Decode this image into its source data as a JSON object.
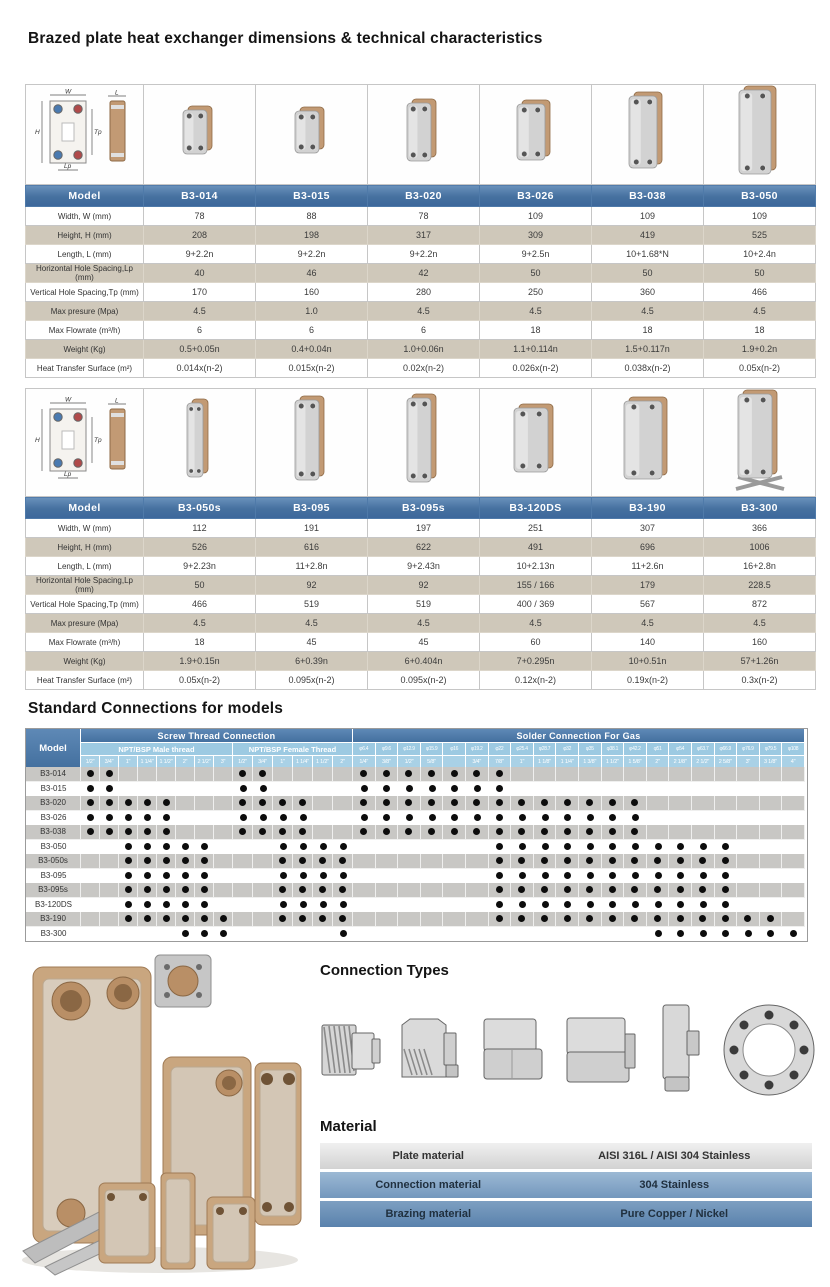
{
  "sections": {
    "dimensions_title": "Brazed plate heat exchanger dimensions & technical characteristics",
    "connections_title": "Standard Connections for models",
    "connection_types_title": "Connection Types",
    "material_title": "Material"
  },
  "diagram_labels": {
    "w": "W",
    "h": "H",
    "l": "L",
    "tp": "Tp",
    "lp": "Lp"
  },
  "dim_tables": [
    {
      "model_header": "Model",
      "models": [
        "B3-014",
        "B3-015",
        "B3-020",
        "B3-026",
        "B3-038",
        "B3-050"
      ],
      "rows": [
        {
          "label": "Width, W (mm)",
          "values": [
            "78",
            "88",
            "78",
            "109",
            "109",
            "109"
          ]
        },
        {
          "label": "Height, H (mm)",
          "values": [
            "208",
            "198",
            "317",
            "309",
            "419",
            "525"
          ]
        },
        {
          "label": "Length, L (mm)",
          "values": [
            "9+2.2n",
            "9+2.2n",
            "9+2.2n",
            "9+2.5n",
            "10+1.68*N",
            "10+2.4n"
          ]
        },
        {
          "label": "Horizontal Hole Spacing,Lp (mm)",
          "values": [
            "40",
            "46",
            "42",
            "50",
            "50",
            "50"
          ]
        },
        {
          "label": "Vertical Hole Spacing,Tp (mm)",
          "values": [
            "170",
            "160",
            "280",
            "250",
            "360",
            "466"
          ]
        },
        {
          "label": "Max presure (Mpa)",
          "values": [
            "4.5",
            "1.0",
            "4.5",
            "4.5",
            "4.5",
            "4.5"
          ]
        },
        {
          "label": "Max Flowrate (m³/h)",
          "values": [
            "6",
            "6",
            "6",
            "18",
            "18",
            "18"
          ]
        },
        {
          "label": "Weight (Kg)",
          "values": [
            "0.5+0.05n",
            "0.4+0.04n",
            "1.0+0.06n",
            "1.1+0.114n",
            "1.5+0.117n",
            "1.9+0.2n"
          ]
        },
        {
          "label": "Heat Transfer Surface (m²)",
          "values": [
            "0.014x(n-2)",
            "0.015x(n-2)",
            "0.02x(n-2)",
            "0.026x(n-2)",
            "0.038x(n-2)",
            "0.05x(n-2)"
          ]
        }
      ]
    },
    {
      "model_header": "Model",
      "models": [
        "B3-050s",
        "B3-095",
        "B3-095s",
        "B3-120DS",
        "B3-190",
        "B3-300"
      ],
      "rows": [
        {
          "label": "Width, W (mm)",
          "values": [
            "112",
            "191",
            "197",
            "251",
            "307",
            "366"
          ]
        },
        {
          "label": "Height, H (mm)",
          "values": [
            "526",
            "616",
            "622",
            "491",
            "696",
            "1006"
          ]
        },
        {
          "label": "Length, L (mm)",
          "values": [
            "9+2.23n",
            "11+2.8n",
            "9+2.43n",
            "10+2.13n",
            "11+2.6n",
            "16+2.8n"
          ]
        },
        {
          "label": "Horizontal Hole Spacing,Lp (mm)",
          "values": [
            "50",
            "92",
            "92",
            "155 / 166",
            "179",
            "228.5"
          ]
        },
        {
          "label": "Vertical Hole Spacing,Tp (mm)",
          "values": [
            "466",
            "519",
            "519",
            "400 / 369",
            "567",
            "872"
          ]
        },
        {
          "label": "Max presure (Mpa)",
          "values": [
            "4.5",
            "4.5",
            "4.5",
            "4.5",
            "4.5",
            "4.5"
          ]
        },
        {
          "label": "Max Flowrate (m³/h)",
          "values": [
            "18",
            "45",
            "45",
            "60",
            "140",
            "160"
          ]
        },
        {
          "label": "Weight (Kg)",
          "values": [
            "1.9+0.15n",
            "6+0.39n",
            "6+0.404n",
            "7+0.295n",
            "10+0.51n",
            "57+1.26n"
          ]
        },
        {
          "label": "Heat Transfer Surface (m²)",
          "values": [
            "0.05x(n-2)",
            "0.095x(n-2)",
            "0.095x(n-2)",
            "0.12x(n-2)",
            "0.19x(n-2)",
            "0.3x(n-2)"
          ]
        }
      ]
    }
  ],
  "connections": {
    "model_header": "Model",
    "screw_group": "Screw Thread Connection",
    "solder_group": "Solder Connection For Gas",
    "male_group": "NPT/BSP Male thread",
    "female_group": "NPT/BSP Female Thread",
    "male_sizes": [
      "1/2\"",
      "3/4\"",
      "1\"",
      "1 1/4\"",
      "1 1/2\"",
      "2\"",
      "2 1/2\"",
      "3\""
    ],
    "female_sizes": [
      "1/2\"",
      "3/4\"",
      "1\"",
      "1 1/4\"",
      "1 1/2\"",
      "2\""
    ],
    "solder_diameters": [
      "φ6.4",
      "φ9.6",
      "φ12.9",
      "φ15.9",
      "φ16",
      "φ19.2",
      "φ22",
      "φ25.4",
      "φ28.7",
      "φ32",
      "φ35",
      "φ38.1",
      "φ42.2",
      "φ51",
      "φ54",
      "φ63.7",
      "φ66.9",
      "φ76.9",
      "φ79.5",
      "φ108"
    ],
    "solder_sizes": [
      "1/4\"",
      "3/8\"",
      "1/2\"",
      "5/8\"",
      "",
      "3/4\"",
      "7/8\"",
      "1\"",
      "1 1/8\"",
      "1 1/4\"",
      "1 3/8\"",
      "1 1/2\"",
      "1 5/8\"",
      "2\"",
      "2 1/8\"",
      "2 1/2\"",
      "2 5/8\"",
      "3\"",
      "3 1/8\"",
      "4\""
    ],
    "rows": [
      {
        "model": "B3-014",
        "male": [
          1,
          2
        ],
        "female": [
          1,
          2
        ],
        "solder": [
          1,
          2,
          3,
          4,
          5,
          6,
          7
        ]
      },
      {
        "model": "B3-015",
        "male": [
          1,
          2
        ],
        "female": [
          1,
          2
        ],
        "solder": [
          1,
          2,
          3,
          4,
          5,
          6,
          7
        ]
      },
      {
        "model": "B3-020",
        "male": [
          1,
          2,
          3,
          4,
          5
        ],
        "female": [
          1,
          2,
          3,
          4
        ],
        "solder": [
          1,
          2,
          3,
          4,
          5,
          6,
          7,
          8,
          9,
          10,
          11,
          12,
          13
        ]
      },
      {
        "model": "B3-026",
        "male": [
          1,
          2,
          3,
          4,
          5
        ],
        "female": [
          1,
          2,
          3,
          4
        ],
        "solder": [
          1,
          2,
          3,
          4,
          5,
          6,
          7,
          8,
          9,
          10,
          11,
          12,
          13
        ]
      },
      {
        "model": "B3-038",
        "male": [
          1,
          2,
          3,
          4,
          5
        ],
        "female": [
          1,
          2,
          3,
          4
        ],
        "solder": [
          1,
          2,
          3,
          4,
          5,
          6,
          7,
          8,
          9,
          10,
          11,
          12,
          13
        ]
      },
      {
        "model": "B3-050",
        "male": [
          3,
          4,
          5,
          6,
          7
        ],
        "female": [
          3,
          4,
          5,
          6
        ],
        "solder": [
          7,
          8,
          9,
          10,
          11,
          12,
          13,
          14,
          15,
          16,
          17
        ]
      },
      {
        "model": "B3-050s",
        "male": [
          3,
          4,
          5,
          6,
          7
        ],
        "female": [
          3,
          4,
          5,
          6
        ],
        "solder": [
          7,
          8,
          9,
          10,
          11,
          12,
          13,
          14,
          15,
          16,
          17
        ]
      },
      {
        "model": "B3-095",
        "male": [
          3,
          4,
          5,
          6,
          7
        ],
        "female": [
          3,
          4,
          5,
          6
        ],
        "solder": [
          7,
          8,
          9,
          10,
          11,
          12,
          13,
          14,
          15,
          16,
          17
        ]
      },
      {
        "model": "B3-095s",
        "male": [
          3,
          4,
          5,
          6,
          7
        ],
        "female": [
          3,
          4,
          5,
          6
        ],
        "solder": [
          7,
          8,
          9,
          10,
          11,
          12,
          13,
          14,
          15,
          16,
          17
        ]
      },
      {
        "model": "B3-120DS",
        "male": [
          3,
          4,
          5,
          6,
          7
        ],
        "female": [
          3,
          4,
          5,
          6
        ],
        "solder": [
          7,
          8,
          9,
          10,
          11,
          12,
          13,
          14,
          15,
          16,
          17
        ]
      },
      {
        "model": "B3-190",
        "male": [
          3,
          4,
          5,
          6,
          7,
          8
        ],
        "female": [
          3,
          4,
          5,
          6
        ],
        "solder": [
          7,
          8,
          9,
          10,
          11,
          12,
          13,
          14,
          15,
          16,
          17,
          18,
          19
        ]
      },
      {
        "model": "B3-300",
        "male": [
          6,
          7,
          8
        ],
        "female": [
          6
        ],
        "solder": [
          14,
          15,
          16,
          17,
          18,
          19,
          20
        ]
      }
    ]
  },
  "connection_types": {
    "items": [
      "male-thread-fitting",
      "female-thread-fitting",
      "solder-fitting-small",
      "solder-fitting-large",
      "solder-sleeve-fitting",
      "flange-fitting"
    ]
  },
  "material": {
    "rows": [
      {
        "label": "Plate material",
        "value": "AISI 316L / AISI 304 Stainless"
      },
      {
        "label": "Connection material",
        "value": "304 Stainless"
      },
      {
        "label": "Brazing material",
        "value": "Pure Copper / Nickel"
      }
    ]
  },
  "colors": {
    "header_blue": "#45709f",
    "light_blue": "#9dcae2",
    "row_beige": "#cfc8ba",
    "row_gray": "#c8c7c4",
    "dot": "#0c0c0c",
    "copper": "#c29a74"
  }
}
